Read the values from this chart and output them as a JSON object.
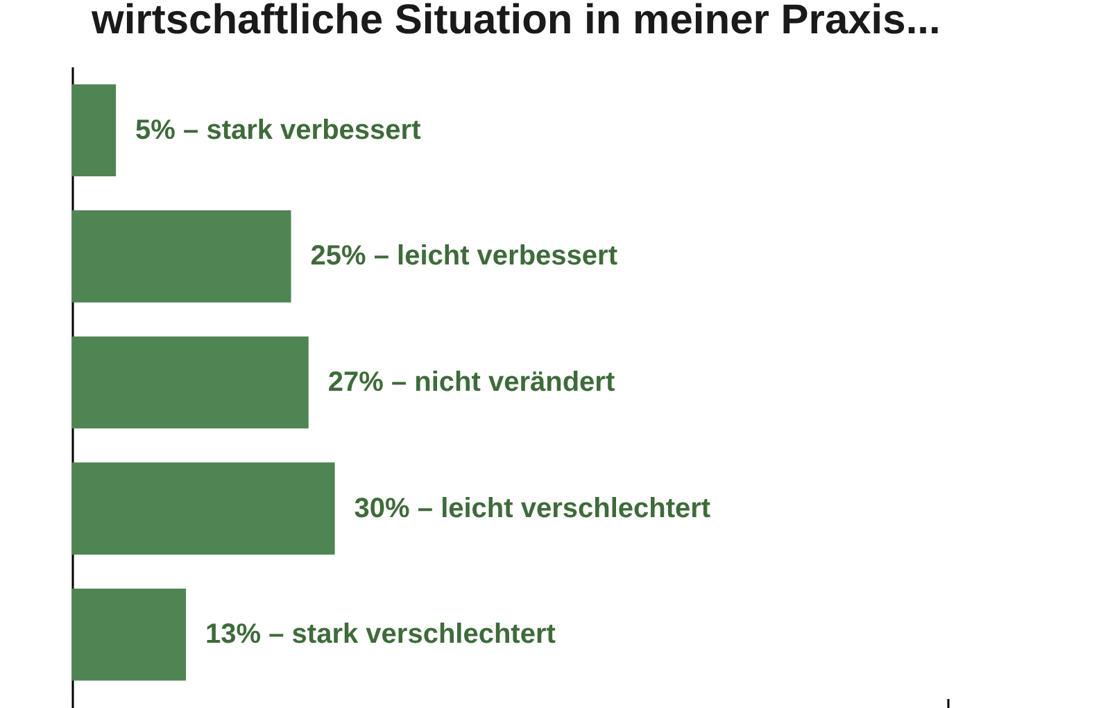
{
  "chart_data": {
    "type": "bar",
    "orientation": "horizontal",
    "title": "wirtschaftliche Situation in meiner Praxis...",
    "categories": [
      null,
      null,
      null,
      null,
      null
    ],
    "values": [
      5,
      25,
      27,
      30,
      13
    ],
    "value_labels": [
      "5% – stark verbessert",
      "25% – leicht verbessert",
      "27% – nicht verändert",
      "30% – leicht verschlechtert",
      "13% – stark verschlechtert"
    ],
    "color": "#4f8453",
    "xticks": [
      {
        "value": 0,
        "label": null
      },
      {
        "value": 100,
        "label": null
      }
    ],
    "grid": false
  }
}
